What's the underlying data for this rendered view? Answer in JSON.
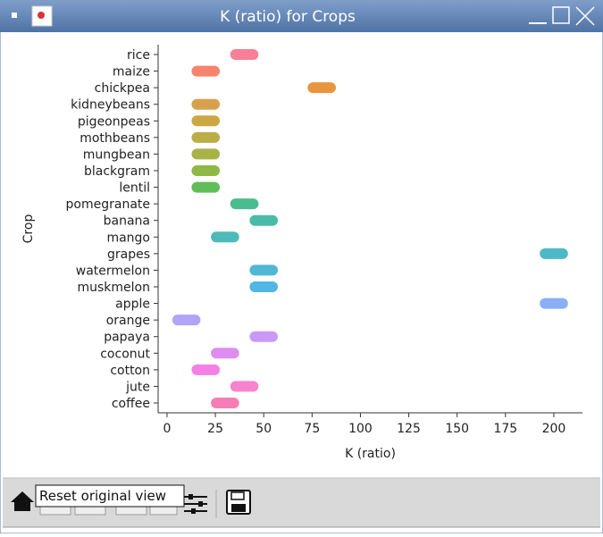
{
  "window": {
    "title": "K (ratio) for Crops"
  },
  "chart_data": {
    "type": "strip",
    "xlabel": "K (ratio)",
    "ylabel": "Crop",
    "categories": [
      "rice",
      "maize",
      "chickpea",
      "kidneybeans",
      "pigeonpeas",
      "mothbeans",
      "mungbean",
      "blackgram",
      "lentil",
      "pomegranate",
      "banana",
      "mango",
      "grapes",
      "watermelon",
      "muskmelon",
      "apple",
      "orange",
      "papaya",
      "coconut",
      "cotton",
      "jute",
      "coffee"
    ],
    "k_min": [
      35,
      15,
      75,
      15,
      15,
      15,
      15,
      15,
      15,
      35,
      45,
      25,
      195,
      45,
      45,
      195,
      5,
      45,
      25,
      15,
      35,
      25
    ],
    "k_max": [
      45,
      25,
      85,
      25,
      25,
      25,
      25,
      25,
      25,
      45,
      55,
      35,
      205,
      55,
      55,
      205,
      15,
      55,
      35,
      25,
      45,
      35
    ],
    "colors": [
      "#f77189",
      "#f7765c",
      "#e58a2a",
      "#d59737",
      "#c59e30",
      "#b4a532",
      "#a0aa33",
      "#84b033",
      "#50b646",
      "#36b584",
      "#36b49e",
      "#38b3b1",
      "#3ab1c1",
      "#3dafd1",
      "#3daee0",
      "#7ea6f4",
      "#a99af4",
      "#c48ef4",
      "#dc80ef",
      "#f472e2",
      "#f577c7",
      "#f56fad"
    ],
    "xlim": [
      -4.6,
      214.8
    ],
    "xticks": [
      0,
      25,
      50,
      75,
      100,
      125,
      150,
      175,
      200
    ]
  },
  "toolbar": {
    "tooltip": "Reset original view"
  }
}
